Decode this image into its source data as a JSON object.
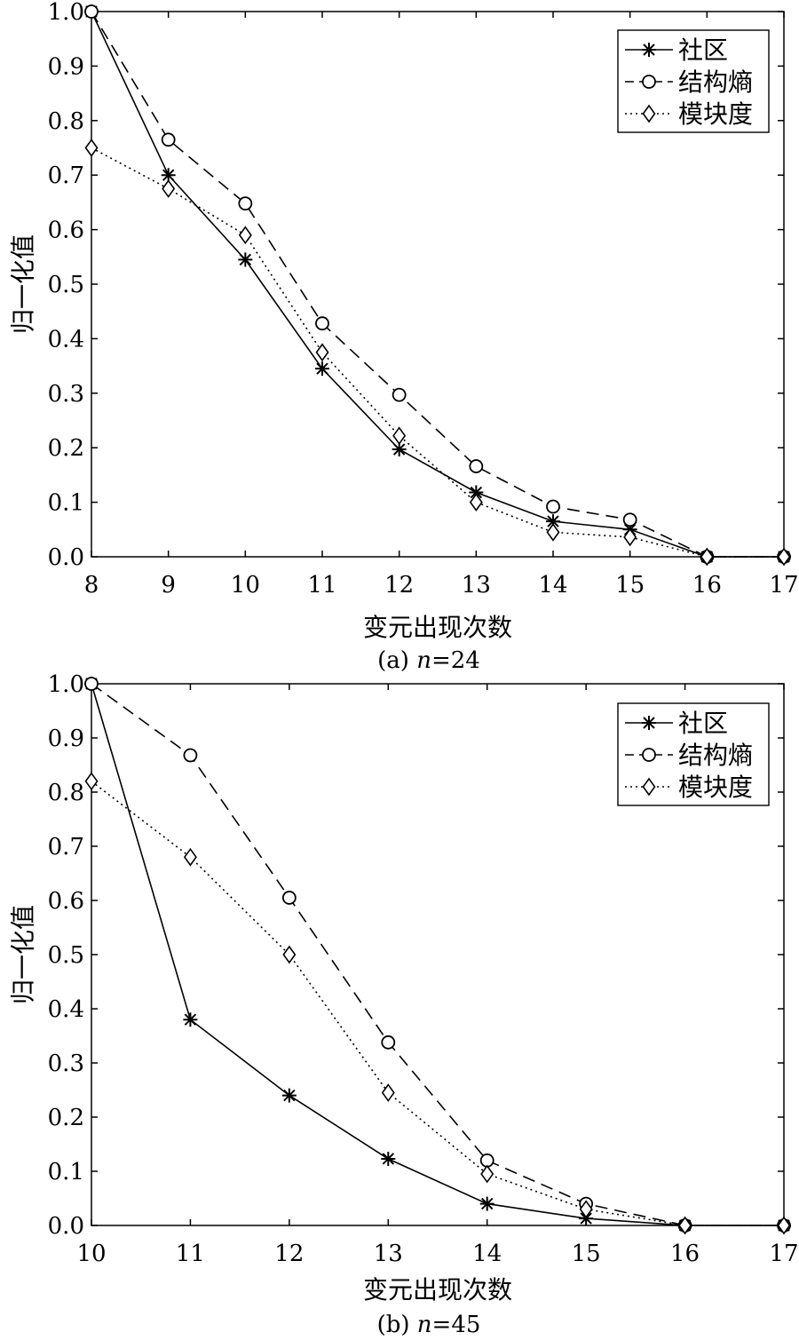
{
  "colors": {
    "line": "#000000",
    "background": "#ffffff"
  },
  "chart_data": [
    {
      "type": "line",
      "caption": "(a) n=24",
      "caption_prefix": "(a) ",
      "caption_var": "n",
      "caption_suffix": "=24",
      "xlabel": "变元出现次数",
      "ylabel": "归一化值",
      "xlim": [
        8,
        17
      ],
      "ylim": [
        0,
        1
      ],
      "x_ticks": [
        "8",
        "9",
        "10",
        "11",
        "12",
        "13",
        "14",
        "15",
        "16",
        "17"
      ],
      "y_ticks": [
        "0.0",
        "0.1",
        "0.2",
        "0.3",
        "0.4",
        "0.5",
        "0.6",
        "0.7",
        "0.8",
        "0.9",
        "1.0"
      ],
      "grid": false,
      "legend_position": "top-right",
      "series": [
        {
          "name": "社区",
          "style": "solid",
          "marker": "star",
          "x": [
            8,
            9,
            10,
            11,
            12,
            13,
            14,
            15,
            16,
            17
          ],
          "y": [
            1.0,
            0.7,
            0.545,
            0.345,
            0.197,
            0.118,
            0.065,
            0.05,
            0.0,
            0.0
          ]
        },
        {
          "name": "结构熵",
          "style": "dashed",
          "marker": "circle",
          "x": [
            8,
            9,
            10,
            11,
            12,
            13,
            14,
            15,
            16,
            17
          ],
          "y": [
            1.0,
            0.765,
            0.648,
            0.428,
            0.297,
            0.166,
            0.092,
            0.068,
            0.0,
            0.0
          ]
        },
        {
          "name": "模块度",
          "style": "dotted",
          "marker": "diamond",
          "x": [
            8,
            9,
            10,
            11,
            12,
            13,
            14,
            15,
            16,
            17
          ],
          "y": [
            0.75,
            0.675,
            0.59,
            0.375,
            0.222,
            0.1,
            0.045,
            0.036,
            0.0,
            0.0
          ]
        }
      ]
    },
    {
      "type": "line",
      "caption": "(b) n=45",
      "caption_prefix": "(b) ",
      "caption_var": "n",
      "caption_suffix": "=45",
      "xlabel": "变元出现次数",
      "ylabel": "归一化值",
      "xlim": [
        10,
        17
      ],
      "ylim": [
        0,
        1
      ],
      "x_ticks": [
        "10",
        "11",
        "12",
        "13",
        "14",
        "15",
        "16",
        "17"
      ],
      "y_ticks": [
        "0.0",
        "0.1",
        "0.2",
        "0.3",
        "0.4",
        "0.5",
        "0.6",
        "0.7",
        "0.8",
        "0.9",
        "1.0"
      ],
      "grid": false,
      "legend_position": "top-right",
      "series": [
        {
          "name": "社区",
          "style": "solid",
          "marker": "star",
          "x": [
            10,
            11,
            12,
            13,
            14,
            15,
            16,
            17
          ],
          "y": [
            1.0,
            0.38,
            0.24,
            0.123,
            0.04,
            0.013,
            0.0,
            0.0
          ]
        },
        {
          "name": "结构熵",
          "style": "dashed",
          "marker": "circle",
          "x": [
            10,
            11,
            12,
            13,
            14,
            15,
            16,
            17
          ],
          "y": [
            1.0,
            0.868,
            0.605,
            0.338,
            0.12,
            0.04,
            0.0,
            0.0
          ]
        },
        {
          "name": "模块度",
          "style": "dotted",
          "marker": "diamond",
          "x": [
            10,
            11,
            12,
            13,
            14,
            15,
            16,
            17
          ],
          "y": [
            0.82,
            0.68,
            0.5,
            0.245,
            0.095,
            0.03,
            0.0,
            0.0
          ]
        }
      ]
    }
  ]
}
